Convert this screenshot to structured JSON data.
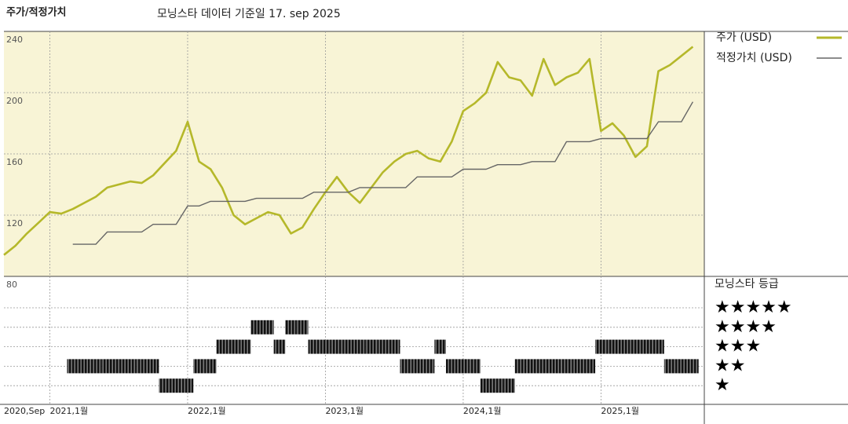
{
  "header": {
    "title": "주가/적정가치",
    "subtitle": "모닝스타 데이터 기준일 17. sep 2025"
  },
  "chart_data": {
    "type": "line",
    "x": [
      "2020-09",
      "2020-10",
      "2020-11",
      "2020-12",
      "2021-01",
      "2021-02",
      "2021-03",
      "2021-04",
      "2021-05",
      "2021-06",
      "2021-07",
      "2021-08",
      "2021-09",
      "2021-10",
      "2021-11",
      "2021-12",
      "2022-01",
      "2022-02",
      "2022-03",
      "2022-04",
      "2022-05",
      "2022-06",
      "2022-07",
      "2022-08",
      "2022-09",
      "2022-10",
      "2022-11",
      "2022-12",
      "2023-01",
      "2023-02",
      "2023-03",
      "2023-04",
      "2023-05",
      "2023-06",
      "2023-07",
      "2023-08",
      "2023-09",
      "2023-10",
      "2023-11",
      "2023-12",
      "2024-01",
      "2024-02",
      "2024-03",
      "2024-04",
      "2024-05",
      "2024-06",
      "2024-07",
      "2024-08",
      "2024-09",
      "2024-10",
      "2024-11",
      "2024-12",
      "2025-01",
      "2025-02",
      "2025-03",
      "2025-04",
      "2025-05",
      "2025-06",
      "2025-07",
      "2025-08",
      "2025-09"
    ],
    "xlim": [
      "2020-09",
      "2025-10"
    ],
    "xticks": [
      {
        "value": "2020-09",
        "label": "2020,Sep"
      },
      {
        "value": "2021-01",
        "label": "2021,1월"
      },
      {
        "value": "2022-01",
        "label": "2022,1월"
      },
      {
        "value": "2023-01",
        "label": "2023,1월"
      },
      {
        "value": "2024-01",
        "label": "2024,1월"
      },
      {
        "value": "2025-01",
        "label": "2025,1월"
      }
    ],
    "ylim": [
      80,
      240
    ],
    "yticks": [
      80,
      120,
      160,
      200,
      240
    ],
    "grid": true,
    "series": [
      {
        "name": "주가 (USD)",
        "color": "#b5b82a",
        "values": [
          94,
          100,
          108,
          115,
          122,
          121,
          124,
          128,
          132,
          138,
          140,
          142,
          141,
          146,
          154,
          162,
          181,
          155,
          150,
          138,
          120,
          114,
          118,
          122,
          120,
          108,
          112,
          124,
          135,
          145,
          135,
          128,
          138,
          148,
          155,
          160,
          162,
          157,
          155,
          168,
          188,
          193,
          200,
          220,
          210,
          208,
          198,
          222,
          205,
          210,
          213,
          222,
          175,
          180,
          172,
          158,
          165,
          214,
          218,
          224,
          230
        ]
      },
      {
        "name": "적정가치 (USD)",
        "color": "#666666",
        "values": [
          null,
          null,
          null,
          null,
          null,
          null,
          101,
          101,
          101,
          109,
          109,
          109,
          109,
          114,
          114,
          114,
          126,
          126,
          129,
          129,
          129,
          129,
          131,
          131,
          131,
          131,
          131,
          135,
          135,
          135,
          135,
          138,
          138,
          138,
          138,
          138,
          145,
          145,
          145,
          145,
          150,
          150,
          150,
          153,
          153,
          153,
          155,
          155,
          155,
          168,
          168,
          168,
          170,
          170,
          170,
          170,
          170,
          181,
          181,
          181,
          194
        ]
      }
    ],
    "rating": {
      "title": "모닝스타 등급",
      "levels": [
        {
          "value": 5,
          "label": "★★★★★"
        },
        {
          "value": 4,
          "label": "★★★★"
        },
        {
          "value": 3,
          "label": "★★★"
        },
        {
          "value": 2,
          "label": "★★"
        },
        {
          "value": 1,
          "label": "★"
        }
      ],
      "values": [
        null,
        null,
        null,
        null,
        null,
        null,
        2,
        2,
        2,
        2,
        2,
        2,
        2,
        2,
        1,
        1,
        1,
        2,
        2,
        3,
        3,
        3,
        4,
        4,
        3,
        4,
        4,
        3,
        3,
        3,
        3,
        3,
        3,
        3,
        3,
        2,
        2,
        2,
        3,
        2,
        2,
        2,
        1,
        1,
        1,
        2,
        2,
        2,
        2,
        2,
        2,
        2,
        3,
        3,
        3,
        3,
        3,
        3,
        2,
        2,
        2
      ]
    }
  }
}
